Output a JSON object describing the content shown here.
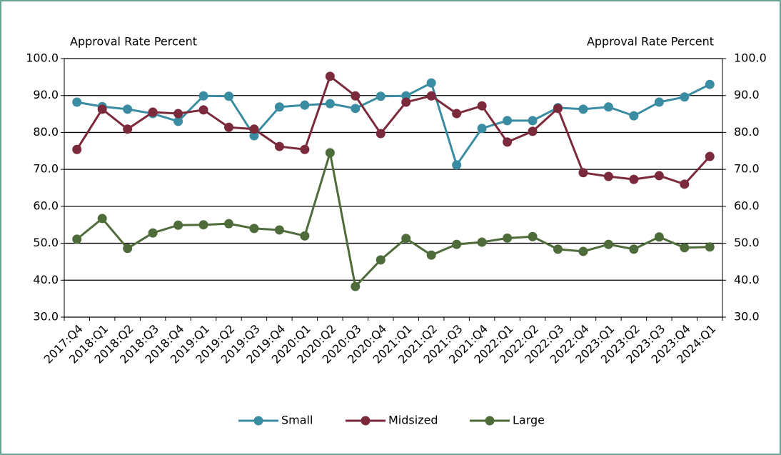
{
  "chart_data": {
    "type": "line",
    "y_label": "Approval Rate Percent",
    "y2_label": "Approval Rate Percent",
    "categories": [
      "2017:Q4",
      "2018:Q1",
      "2018:Q2",
      "2018:Q3",
      "2018:Q4",
      "2019:Q1",
      "2019:Q2",
      "2019:Q3",
      "2019:Q4",
      "2020:Q1",
      "2020:Q2",
      "2020:Q3",
      "2020:Q4",
      "2021:Q1",
      "2021:Q2",
      "2021:Q3",
      "2021:Q4",
      "2022:Q1",
      "2022:Q2",
      "2022:Q3",
      "2022:Q4",
      "2023:Q1",
      "2023:Q2",
      "2023:Q3",
      "2023:Q4",
      "2024:Q1"
    ],
    "series": [
      {
        "name": "Small",
        "color": "#3a8ca3",
        "values": [
          88.2,
          87.0,
          86.3,
          85.1,
          83.0,
          89.9,
          89.8,
          79.1,
          86.9,
          87.4,
          87.8,
          86.5,
          89.8,
          89.9,
          93.4,
          71.2,
          81.1,
          83.2,
          83.2,
          86.7,
          86.3,
          86.9,
          84.5,
          88.2,
          89.6,
          93.0
        ]
      },
      {
        "name": "Midsized",
        "color": "#7b2a3b",
        "values": [
          75.4,
          86.3,
          80.9,
          85.5,
          85.1,
          86.1,
          81.4,
          80.9,
          76.2,
          75.4,
          95.2,
          89.9,
          79.7,
          88.2,
          89.9,
          85.1,
          87.2,
          77.4,
          80.3,
          86.5,
          69.1,
          68.1,
          67.3,
          68.3,
          66.0,
          73.5
        ]
      },
      {
        "name": "Large",
        "color": "#4e6b3a",
        "values": [
          51.1,
          56.7,
          48.6,
          52.8,
          54.9,
          55.0,
          55.3,
          54.0,
          53.6,
          52.0,
          74.5,
          38.3,
          45.5,
          51.3,
          46.8,
          49.7,
          50.3,
          51.4,
          51.8,
          48.4,
          47.8,
          49.7,
          48.4,
          51.7,
          48.8,
          49.0
        ]
      }
    ],
    "ylim": [
      30,
      100
    ],
    "yticks": [
      {
        "value": 30,
        "label": "30.0"
      },
      {
        "value": 40,
        "label": "40.0"
      },
      {
        "value": 50,
        "label": "50.0"
      },
      {
        "value": 60,
        "label": "60.0"
      },
      {
        "value": 70,
        "label": "70.0"
      },
      {
        "value": 80,
        "label": "80.0"
      },
      {
        "value": 90,
        "label": "90.0"
      },
      {
        "value": 100,
        "label": "100.0"
      }
    ],
    "y2lim": [
      30,
      100
    ],
    "y2ticks": [
      {
        "value": 30,
        "label": "30.0"
      },
      {
        "value": 40,
        "label": "40.0"
      },
      {
        "value": 50,
        "label": "50.0"
      },
      {
        "value": 60,
        "label": "60.0"
      },
      {
        "value": 70,
        "label": "70.0"
      },
      {
        "value": 80,
        "label": "80.0"
      },
      {
        "value": 90,
        "label": "90.0"
      },
      {
        "value": 100,
        "label": "100.0"
      }
    ],
    "grid": true,
    "legend": "bottom"
  }
}
